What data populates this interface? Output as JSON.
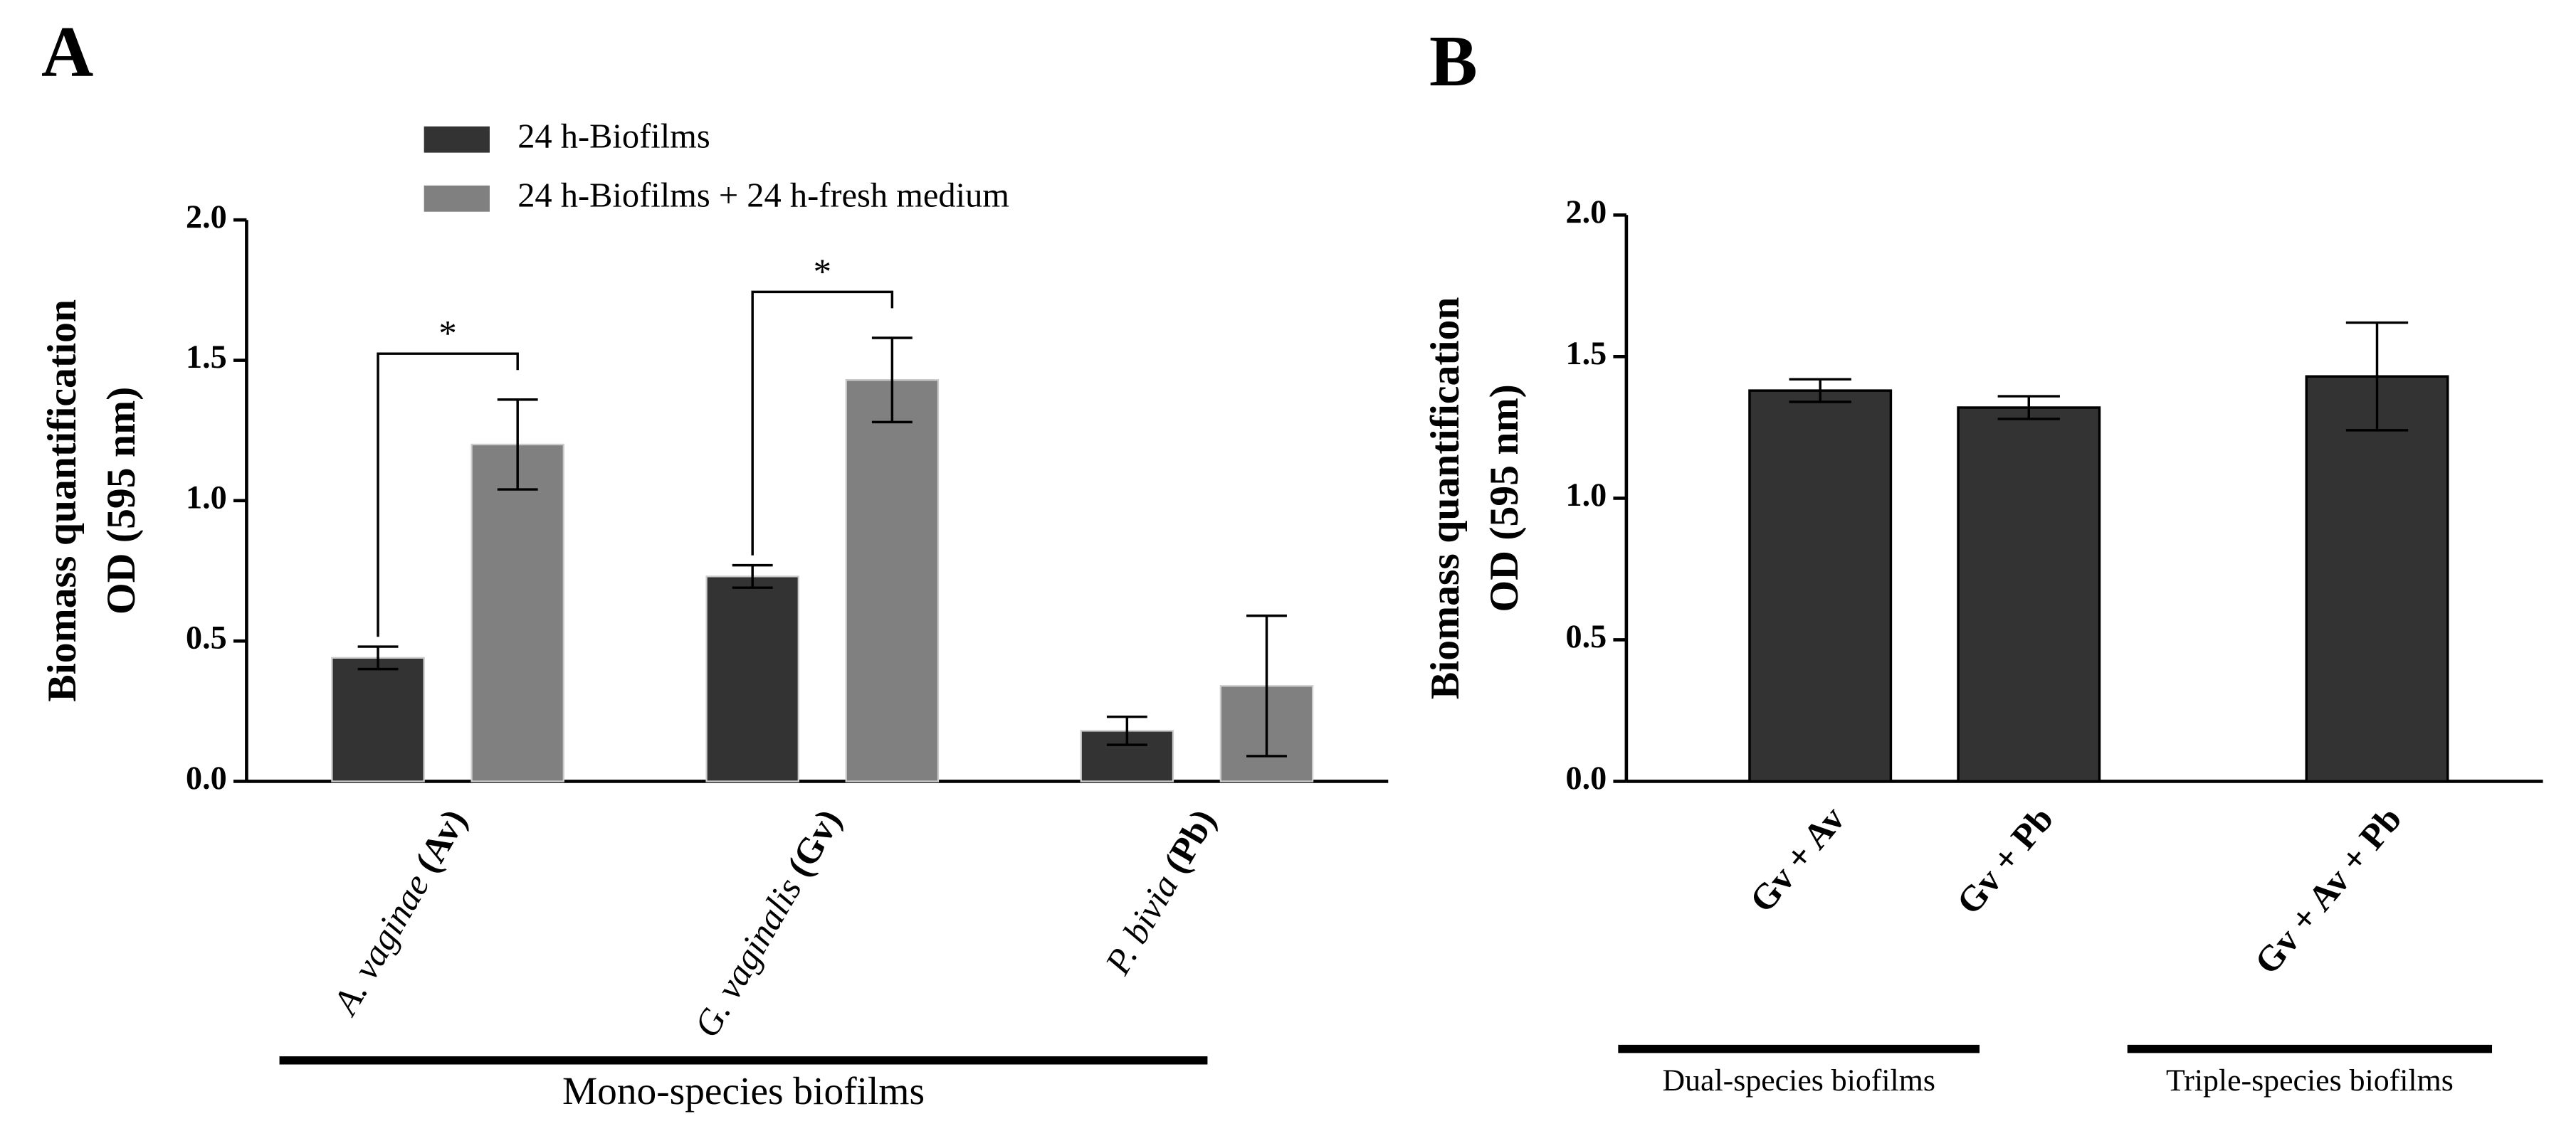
{
  "chart_data": [
    {
      "type": "bar",
      "panel": "A",
      "ylabel": [
        "Biomass quantification",
        "OD (595 nm)"
      ],
      "categories": [
        "A. vaginae (Av)",
        "G. vaginalis (Gv)",
        "P. bivia (Pb)"
      ],
      "series": [
        {
          "name": "24 h-Biofilms",
          "color": "#333333",
          "values": [
            0.44,
            0.73,
            0.18
          ],
          "errors": [
            0.04,
            0.04,
            0.05
          ]
        },
        {
          "name": "24 h-Biofilms + 24 h-fresh medium",
          "color": "#808080",
          "values": [
            1.2,
            1.43,
            0.34
          ],
          "errors": [
            0.16,
            0.15,
            0.25
          ]
        }
      ],
      "annotations": [
        "*",
        "*"
      ],
      "groups": [
        "Mono-species biofilms"
      ],
      "ylim": [
        0,
        2
      ],
      "yticks": [
        {
          "value": 0,
          "label": "0.0"
        },
        {
          "value": 0.5,
          "label": "0.5"
        },
        {
          "value": 1,
          "label": "1.0"
        },
        {
          "value": 1.5,
          "label": "1.5"
        },
        {
          "value": 2,
          "label": "2.0"
        }
      ],
      "grid": false,
      "legend": "top"
    },
    {
      "type": "bar",
      "panel": "B",
      "ylabel": [
        "Biomass quantification",
        "OD (595 nm)"
      ],
      "categories": [
        "Gv + Av",
        "Gv + Pb",
        "Gv + Av + Pb"
      ],
      "values": [
        1.38,
        1.32,
        1.43
      ],
      "errors": [
        0.04,
        0.04,
        0.19
      ],
      "color": "#333333",
      "groups": [
        "Dual-species biofilms",
        "Triple-species biofilms"
      ],
      "ylim": [
        0,
        2
      ],
      "yticks": [
        {
          "value": 0,
          "label": "0.0"
        },
        {
          "value": 0.5,
          "label": "0.5"
        },
        {
          "value": 1,
          "label": "1.0"
        },
        {
          "value": 1.5,
          "label": "1.5"
        },
        {
          "value": 2,
          "label": "2.0"
        }
      ],
      "grid": false
    }
  ]
}
